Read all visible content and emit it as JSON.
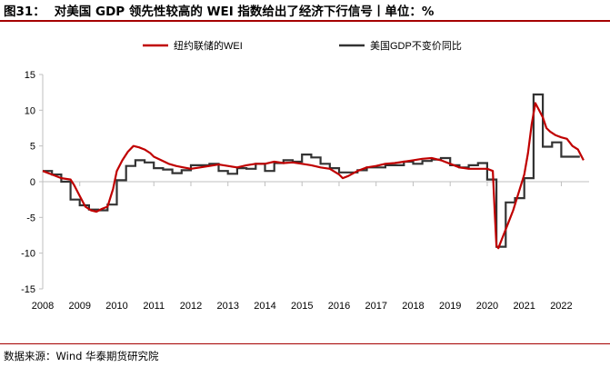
{
  "figure": {
    "number": "图31：",
    "title": "对美国 GDP 领先性较高的 WEI 指数给出了经济下行信号丨单位：%",
    "source": "数据来源：Wind  华泰期货研究院"
  },
  "colors": {
    "wei": "#c00000",
    "gdp": "#333333",
    "axis": "#bfbfbf",
    "accent_line": "#a50000"
  },
  "chart_data": {
    "type": "line",
    "title": "",
    "xlabel": "",
    "ylabel": "",
    "x_ticks": [
      "2008",
      "2009",
      "2010",
      "2011",
      "2012",
      "2013",
      "2014",
      "2015",
      "2016",
      "2017",
      "2018",
      "2019",
      "2020",
      "2021",
      "2022"
    ],
    "y_ticks": [
      15,
      10,
      5,
      0,
      -5,
      -10,
      -15
    ],
    "xlim": [
      2008.0,
      2022.75
    ],
    "ylim": [
      -15,
      15
    ],
    "grid": false,
    "legend_position": "top",
    "series": [
      {
        "name": "纽约联储的WEI",
        "color": "#c00000",
        "x": [
          2008.0,
          2008.25,
          2008.5,
          2008.75,
          2008.85,
          2009.0,
          2009.15,
          2009.3,
          2009.45,
          2009.6,
          2009.75,
          2009.9,
          2010.0,
          2010.15,
          2010.3,
          2010.45,
          2010.6,
          2010.75,
          2010.9,
          2011.0,
          2011.2,
          2011.4,
          2011.6,
          2011.8,
          2012.0,
          2012.25,
          2012.5,
          2012.75,
          2013.0,
          2013.25,
          2013.5,
          2013.75,
          2014.0,
          2014.25,
          2014.5,
          2014.75,
          2015.0,
          2015.25,
          2015.5,
          2015.75,
          2016.0,
          2016.1,
          2016.25,
          2016.5,
          2016.75,
          2017.0,
          2017.25,
          2017.5,
          2017.75,
          2018.0,
          2018.25,
          2018.5,
          2018.75,
          2019.0,
          2019.25,
          2019.5,
          2019.75,
          2020.0,
          2020.15,
          2020.2,
          2020.25,
          2020.3,
          2020.4,
          2020.55,
          2020.7,
          2020.85,
          2021.0,
          2021.1,
          2021.2,
          2021.3,
          2021.4,
          2021.5,
          2021.6,
          2021.7,
          2021.85,
          2022.0,
          2022.15,
          2022.3,
          2022.45,
          2022.6
        ],
        "values": [
          1.5,
          1.0,
          0.5,
          0.3,
          -0.5,
          -2.0,
          -3.5,
          -4.0,
          -4.2,
          -3.8,
          -3.5,
          -1.0,
          1.5,
          3.0,
          4.2,
          5.0,
          4.8,
          4.5,
          4.0,
          3.5,
          3.0,
          2.5,
          2.2,
          2.0,
          1.8,
          2.0,
          2.2,
          2.4,
          2.2,
          2.0,
          2.3,
          2.5,
          2.5,
          2.8,
          2.6,
          2.7,
          2.5,
          2.3,
          2.0,
          1.8,
          1.0,
          0.5,
          0.8,
          1.5,
          2.0,
          2.2,
          2.5,
          2.6,
          2.8,
          3.0,
          3.2,
          3.3,
          3.0,
          2.5,
          2.0,
          1.8,
          1.8,
          1.8,
          1.5,
          -4.0,
          -9.0,
          -9.3,
          -8.0,
          -6.0,
          -4.0,
          -1.5,
          1.0,
          4.0,
          8.0,
          11.0,
          10.0,
          9.0,
          7.5,
          7.0,
          6.5,
          6.2,
          6.0,
          5.0,
          4.5,
          3.0
        ]
      },
      {
        "name": "美国GDP不变价同比",
        "color": "#333333",
        "step_x": [
          2008.0,
          2008.25,
          2008.5,
          2008.75,
          2009.0,
          2009.25,
          2009.5,
          2009.75,
          2010.0,
          2010.25,
          2010.5,
          2010.75,
          2011.0,
          2011.25,
          2011.5,
          2011.75,
          2012.0,
          2012.25,
          2012.5,
          2012.75,
          2013.0,
          2013.25,
          2013.5,
          2013.75,
          2014.0,
          2014.25,
          2014.5,
          2014.75,
          2015.0,
          2015.25,
          2015.5,
          2015.75,
          2016.0,
          2016.25,
          2016.5,
          2016.75,
          2017.0,
          2017.25,
          2017.5,
          2017.75,
          2018.0,
          2018.25,
          2018.5,
          2018.75,
          2019.0,
          2019.25,
          2019.5,
          2019.75,
          2020.0,
          2020.25,
          2020.5,
          2020.75,
          2021.0,
          2021.25,
          2021.5,
          2021.75,
          2022.0,
          2022.25
        ],
        "values": [
          1.5,
          1.0,
          0.0,
          -2.5,
          -3.3,
          -3.9,
          -4.0,
          -3.2,
          0.2,
          2.2,
          3.0,
          2.7,
          1.9,
          1.7,
          1.2,
          1.6,
          2.3,
          2.3,
          2.5,
          1.5,
          1.1,
          1.9,
          1.8,
          2.5,
          1.5,
          2.6,
          3.0,
          2.8,
          3.8,
          3.4,
          2.5,
          1.9,
          1.3,
          1.3,
          1.6,
          2.0,
          2.0,
          2.3,
          2.3,
          2.8,
          2.5,
          2.9,
          3.1,
          3.3,
          2.3,
          2.0,
          2.3,
          2.6,
          0.3,
          -9.1,
          -2.9,
          -2.3,
          0.5,
          12.2,
          4.9,
          5.5,
          3.5,
          3.5
        ]
      }
    ]
  }
}
